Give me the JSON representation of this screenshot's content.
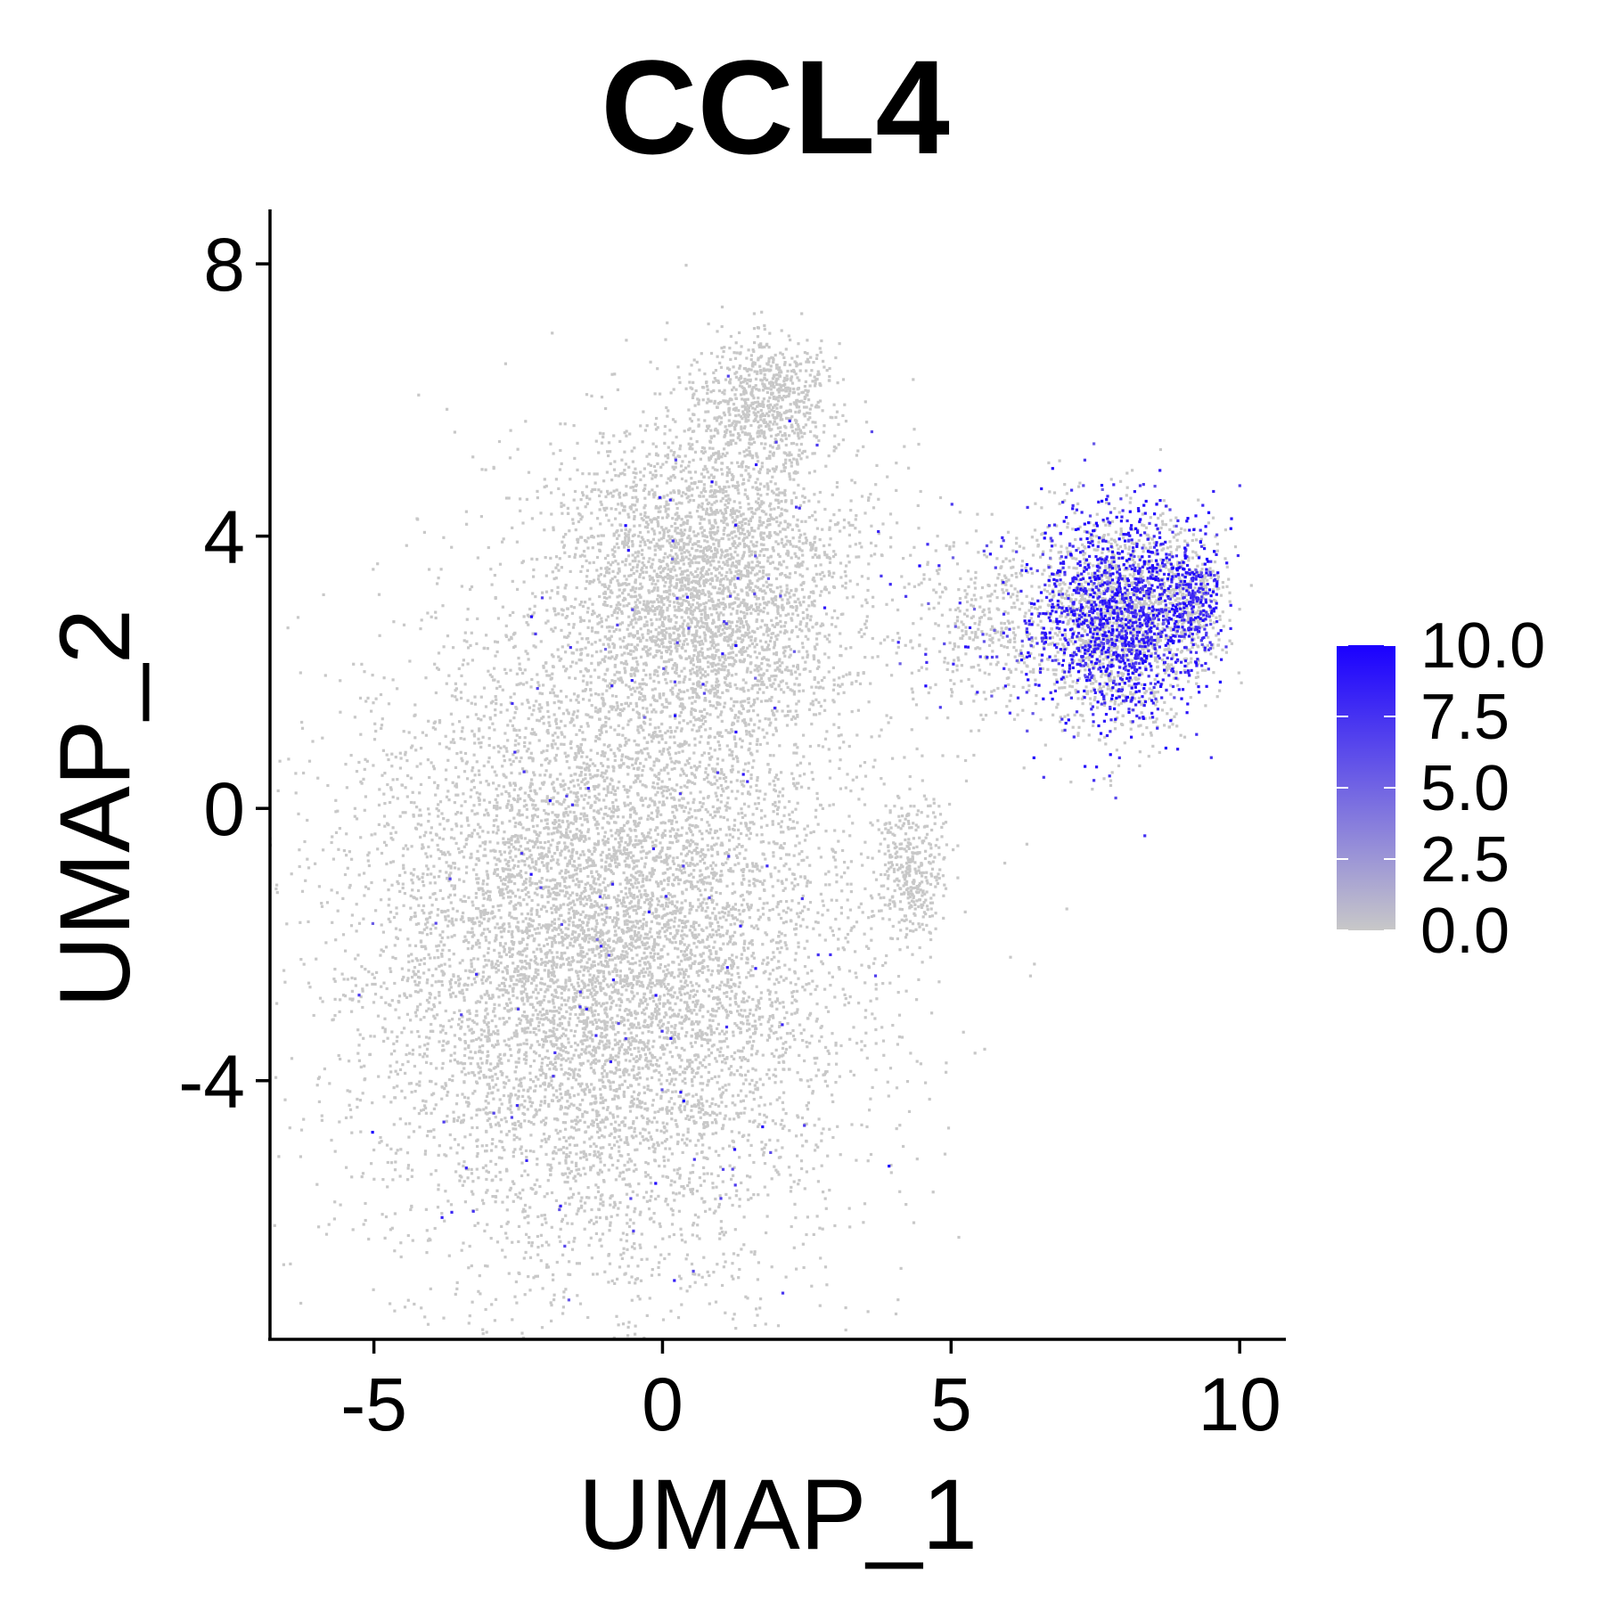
{
  "chart_data": {
    "type": "scatter",
    "title": "CCL4",
    "xlabel": "UMAP_1",
    "ylabel": "UMAP_2",
    "xlim": [
      -6.8,
      10.8
    ],
    "ylim": [
      -7.8,
      8.8
    ],
    "xticks": [
      -5,
      0,
      5,
      10
    ],
    "xtick_labels": [
      "-5",
      "0",
      "5",
      "10"
    ],
    "yticks": [
      -4,
      0,
      4,
      8
    ],
    "ytick_labels": [
      "-4",
      "0",
      "4",
      "8"
    ],
    "grid": false,
    "color_scale": {
      "min": 0,
      "max": 10,
      "low_color": "#c8c8c8",
      "high_color": "#1a00ff",
      "ticks": [
        0,
        2.5,
        5,
        7.5,
        10
      ],
      "tick_labels": [
        "0.0",
        "2.5",
        "5.0",
        "7.5",
        "10.0"
      ],
      "legend_position": "right"
    },
    "point_groups": [
      {
        "cx": -1.0,
        "cy": -2.0,
        "sx": 2.6,
        "sy": 2.9,
        "n": 9000,
        "expr_rate": 0.012,
        "expr_mean": 7.5
      },
      {
        "cx": 0.8,
        "cy": 3.3,
        "sx": 1.6,
        "sy": 1.5,
        "n": 3500,
        "expr_rate": 0.012,
        "expr_mean": 7.5
      },
      {
        "cx": 1.8,
        "cy": 6.0,
        "sx": 0.7,
        "sy": 0.55,
        "n": 700,
        "expr_rate": 0.01,
        "expr_mean": 7.5
      },
      {
        "cx": 4.3,
        "cy": -0.9,
        "sx": 0.35,
        "sy": 0.7,
        "n": 350,
        "expr_rate": 0.0,
        "expr_mean": 0
      },
      {
        "cx": 5.6,
        "cy": 2.7,
        "sx": 0.8,
        "sy": 0.9,
        "n": 400,
        "expr_rate": 0.15,
        "expr_mean": 7.0
      },
      {
        "cx": 7.9,
        "cy": 2.8,
        "sx": 0.9,
        "sy": 0.95,
        "n": 2800,
        "expr_rate": 0.45,
        "expr_mean": 8.5
      },
      {
        "cx": 9.2,
        "cy": 3.1,
        "sx": 0.3,
        "sy": 0.5,
        "n": 400,
        "expr_rate": 0.5,
        "expr_mean": 8.5
      }
    ]
  }
}
